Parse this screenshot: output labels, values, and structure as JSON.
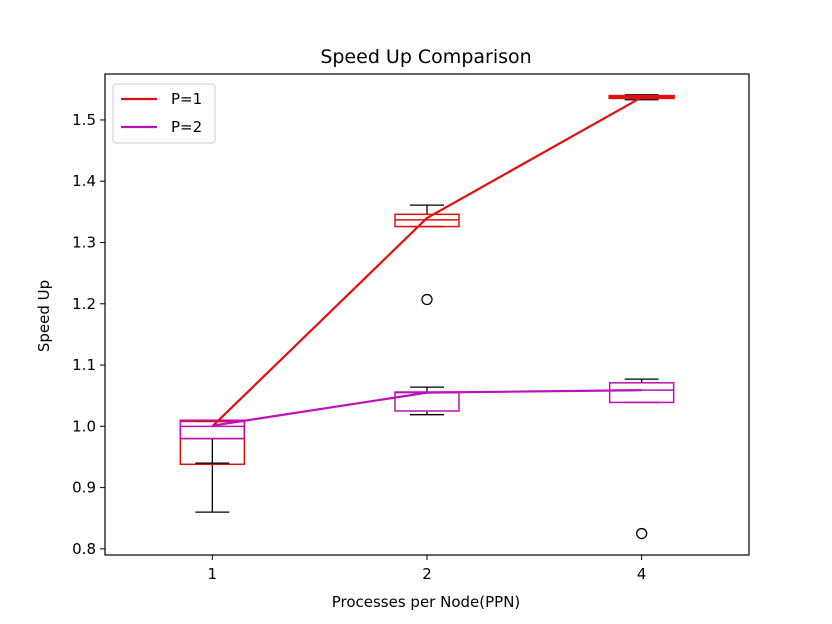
{
  "chart_data": {
    "type": "box_line",
    "title": "Speed Up Comparison",
    "xlabel": "Processes per Node(PPN)",
    "ylabel": "Speed Up",
    "categories": [
      "1",
      "2",
      "4"
    ],
    "ylim": [
      0.79,
      1.575
    ],
    "yticks": [
      0.8,
      0.9,
      1.0,
      1.1,
      1.2,
      1.3,
      1.4,
      1.5
    ],
    "ytick_labels": [
      "0.8",
      "0.9",
      "1.0",
      "1.1",
      "1.2",
      "1.3",
      "1.4",
      "1.5"
    ],
    "grid": false,
    "legend_position": "top-left",
    "series": [
      {
        "name": "P=1",
        "color": "#e01010",
        "line_values": [
          1.0,
          1.34,
          1.537
        ],
        "boxes": [
          {
            "whisker_low": 0.86,
            "q1": 0.938,
            "median": 0.98,
            "q3": 1.008,
            "whisker_high": 1.008,
            "outliers": []
          },
          {
            "whisker_low": 1.326,
            "q1": 1.326,
            "median": 1.337,
            "q3": 1.346,
            "whisker_high": 1.361,
            "outliers": [
              1.207
            ]
          },
          {
            "whisker_low": 1.533,
            "q1": 1.536,
            "median": 1.537,
            "q3": 1.539,
            "whisker_high": 1.541,
            "outliers": []
          }
        ]
      },
      {
        "name": "P=2",
        "color": "#bb10bb",
        "line_values": [
          1.001,
          1.055,
          1.059
        ],
        "boxes": [
          {
            "whisker_low": 0.94,
            "q1": 0.98,
            "median": 1.0,
            "q3": 1.01,
            "whisker_high": 1.01,
            "outliers": []
          },
          {
            "whisker_low": 1.019,
            "q1": 1.025,
            "median": 1.055,
            "q3": 1.056,
            "whisker_high": 1.064,
            "outliers": []
          },
          {
            "whisker_low": 1.039,
            "q1": 1.039,
            "median": 1.059,
            "q3": 1.071,
            "whisker_high": 1.077,
            "outliers": [
              0.825
            ]
          }
        ]
      }
    ]
  }
}
